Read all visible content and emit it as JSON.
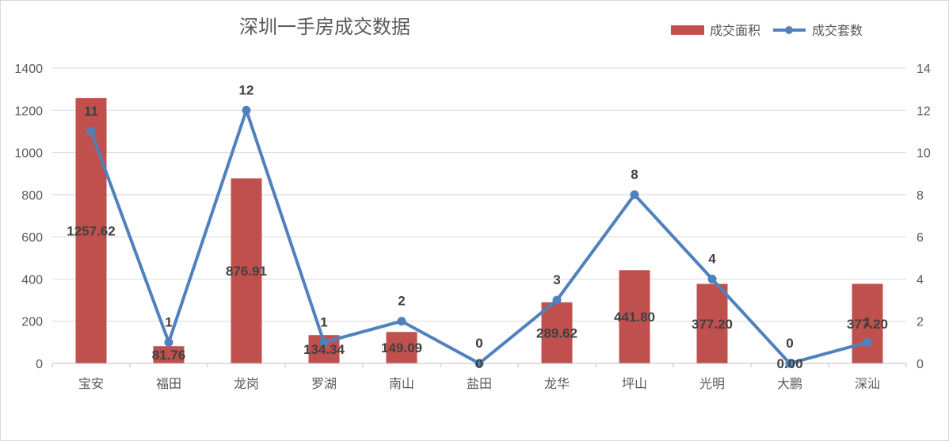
{
  "chart_data": {
    "type": "bar",
    "title": "深圳一手房成交数据",
    "categories": [
      "宝安",
      "福田",
      "龙岗",
      "罗湖",
      "南山",
      "盐田",
      "龙华",
      "坪山",
      "光明",
      "大鹏",
      "深汕"
    ],
    "series": [
      {
        "name": "成交面积",
        "type": "bar",
        "axis": "left",
        "color": "#c0504d",
        "values": [
          1257.62,
          81.76,
          876.91,
          134.34,
          149.09,
          0.0,
          289.62,
          441.8,
          377.2,
          0.0,
          377.2
        ],
        "labels": [
          "1257.62",
          "81.76",
          "876.91",
          "134.34",
          "149.09",
          "0",
          "289.62",
          "441.80",
          "377.20",
          "0.00",
          "377.20"
        ]
      },
      {
        "name": "成交套数",
        "type": "line",
        "axis": "right",
        "color": "#4f81bd",
        "values": [
          11,
          1,
          12,
          1,
          2,
          0,
          3,
          8,
          4,
          0,
          1
        ],
        "labels": [
          "11",
          "1",
          "12",
          "1",
          "2",
          "0",
          "3",
          "8",
          "4",
          "0",
          "1"
        ]
      }
    ],
    "y_left": {
      "min": 0,
      "max": 1400,
      "ticks": [
        "0",
        "200",
        "400",
        "600",
        "800",
        "1000",
        "1200",
        "1400"
      ]
    },
    "y_right": {
      "min": 0,
      "max": 14,
      "ticks": [
        "0",
        "2",
        "4",
        "6",
        "8",
        "10",
        "12",
        "14"
      ]
    },
    "grid": true,
    "legend_position": "top-right"
  }
}
